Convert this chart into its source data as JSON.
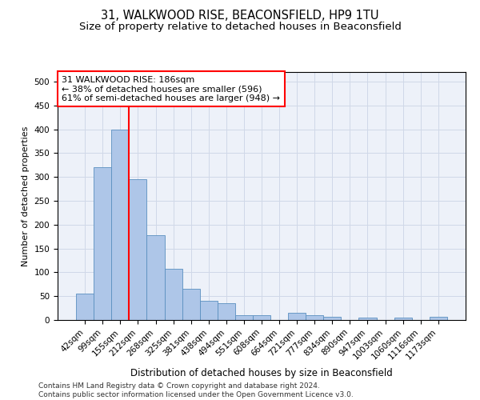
{
  "title1": "31, WALKWOOD RISE, BEACONSFIELD, HP9 1TU",
  "title2": "Size of property relative to detached houses in Beaconsfield",
  "xlabel": "Distribution of detached houses by size in Beaconsfield",
  "ylabel": "Number of detached properties",
  "categories": [
    "42sqm",
    "99sqm",
    "155sqm",
    "212sqm",
    "268sqm",
    "325sqm",
    "381sqm",
    "438sqm",
    "494sqm",
    "551sqm",
    "608sqm",
    "664sqm",
    "721sqm",
    "777sqm",
    "834sqm",
    "890sqm",
    "947sqm",
    "1003sqm",
    "1060sqm",
    "1116sqm",
    "1173sqm"
  ],
  "values": [
    55,
    320,
    400,
    295,
    178,
    108,
    65,
    40,
    35,
    10,
    10,
    0,
    15,
    10,
    7,
    0,
    5,
    0,
    5,
    0,
    6
  ],
  "bar_color": "#aec6e8",
  "bar_edge_color": "#5a8fc0",
  "vline_x": 2.5,
  "vline_color": "red",
  "annotation_text": "31 WALKWOOD RISE: 186sqm\n← 38% of detached houses are smaller (596)\n61% of semi-detached houses are larger (948) →",
  "ylim": [
    0,
    520
  ],
  "yticks": [
    0,
    50,
    100,
    150,
    200,
    250,
    300,
    350,
    400,
    450,
    500
  ],
  "grid_color": "#d0d8e8",
  "bg_color": "#edf1f9",
  "footer": "Contains HM Land Registry data © Crown copyright and database right 2024.\nContains public sector information licensed under the Open Government Licence v3.0.",
  "title1_fontsize": 10.5,
  "title2_fontsize": 9.5,
  "xlabel_fontsize": 8.5,
  "ylabel_fontsize": 8,
  "tick_fontsize": 7.5,
  "annotation_fontsize": 8,
  "footer_fontsize": 6.5
}
